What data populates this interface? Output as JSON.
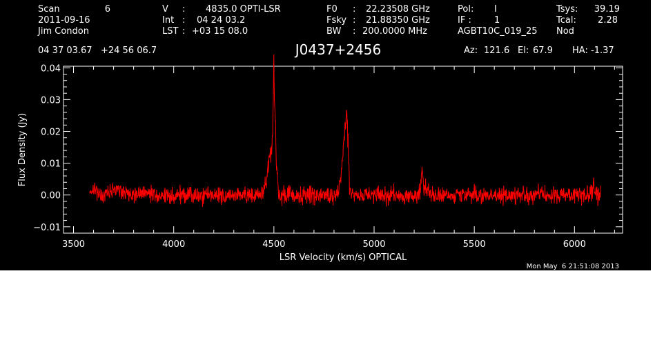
{
  "header": {
    "scan_label": "Scan",
    "scan_value": "6",
    "date": "2011-09-16",
    "observer": "Jim Condon",
    "v_label": "V",
    "v_value": "4835.0 OPTI-LSR",
    "int_label": "Int",
    "int_value": "04 24 03.2",
    "lst_label": "LST",
    "lst_value": "+03 15 08.0",
    "f0_label": "F0",
    "f0_value": "22.23508 GHz",
    "fsky_label": "Fsky",
    "fsky_value": "21.88350 GHz",
    "bw_label": "BW",
    "bw_value": "200.0000 MHz",
    "pol_label": "Pol:",
    "pol_value": "I",
    "if_label": "IF :",
    "if_value": "1",
    "project": "AGBT10C_019_25",
    "tsys_label": "Tsys:",
    "tsys_value": "39.19",
    "tcal_label": "Tcal:",
    "tcal_value": "2.28",
    "mode": "Nod",
    "coords": "04 37 03.67   +24 56 06.7",
    "source": "J0437+2456",
    "az_label": "Az:",
    "az_value": "121.6",
    "el_label": "El:",
    "el_value": "67.9",
    "ha_label": "HA:",
    "ha_value": "-1.37"
  },
  "footer": {
    "timestamp": "Mon May  6 21:51:08 2013"
  },
  "colors": {
    "background": "#000000",
    "axes": "#ffffff",
    "trace": "#ff0000"
  },
  "chart_data": {
    "type": "line",
    "xlabel": "LSR Velocity (km/s) OPTICAL",
    "ylabel": "Flux Density (Jy)",
    "xlim": [
      3450,
      6240
    ],
    "ylim": [
      -0.012,
      0.0405
    ],
    "xticks": [
      3500,
      4000,
      4500,
      5000,
      5500,
      6000
    ],
    "xtick_labels": [
      "3500",
      "4000",
      "4500",
      "5000",
      "5500",
      "6000"
    ],
    "yticks": [
      -0.01,
      0.0,
      0.01,
      0.02,
      0.03,
      0.04
    ],
    "ytick_labels": [
      "−0.01",
      "0.00",
      "0.01",
      "0.02",
      "0.03",
      "0.04"
    ],
    "grid": false,
    "series": [
      {
        "color": "#ff0000",
        "x_start": 3580,
        "x_end": 6130,
        "noise_rms": 0.0015,
        "features": [
          {
            "x": 3595,
            "y": 0.002,
            "width": 10
          },
          {
            "x": 3710,
            "y": 0.002,
            "width": 30
          },
          {
            "x": 4462,
            "y": 0.004,
            "width": 10
          },
          {
            "x": 4475,
            "y": 0.009,
            "width": 5
          },
          {
            "x": 4484,
            "y": 0.011,
            "width": 4
          },
          {
            "x": 4492,
            "y": 0.013,
            "width": 4
          },
          {
            "x": 4499,
            "y": 0.035,
            "width": 3
          },
          {
            "x": 4506,
            "y": 0.023,
            "width": 3
          },
          {
            "x": 4514,
            "y": 0.008,
            "width": 4
          },
          {
            "x": 4840,
            "y": 0.009,
            "width": 10
          },
          {
            "x": 4852,
            "y": 0.012,
            "width": 6
          },
          {
            "x": 4862,
            "y": 0.017,
            "width": 5
          },
          {
            "x": 4870,
            "y": 0.011,
            "width": 5
          },
          {
            "x": 5240,
            "y": 0.007,
            "width": 5
          },
          {
            "x": 5260,
            "y": 0.002,
            "width": 12
          },
          {
            "x": 6095,
            "y": 0.003,
            "width": 6
          }
        ]
      }
    ]
  }
}
